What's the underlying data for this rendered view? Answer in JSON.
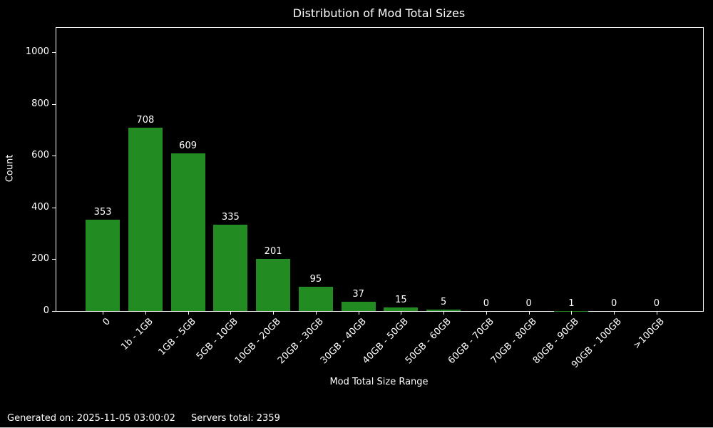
{
  "title": "Distribution of Mod Total Sizes",
  "footer": {
    "generated": "Generated on: 2025-11-05 03:00:02",
    "servers": "Servers total: 2359"
  },
  "chart_data": {
    "type": "bar",
    "title": "Distribution of Mod Total Sizes",
    "xlabel": "Mod Total Size Range",
    "ylabel": "Count",
    "categories": [
      "0",
      "1b - 1GB",
      "1GB - 5GB",
      "5GB - 10GB",
      "10GB - 20GB",
      "20GB - 30GB",
      "30GB - 40GB",
      "40GB - 50GB",
      "50GB - 60GB",
      "60GB - 70GB",
      "70GB - 80GB",
      "80GB - 90GB",
      "90GB - 100GB",
      ">100GB"
    ],
    "values": [
      353,
      708,
      609,
      335,
      201,
      95,
      37,
      15,
      5,
      0,
      0,
      1,
      0,
      0
    ],
    "ylim": [
      0,
      1095
    ],
    "yticks": [
      0,
      200,
      400,
      600,
      800,
      1000
    ],
    "xtick_rotation": 45,
    "bar_labels": true,
    "grid": false,
    "legend": null,
    "colors": {
      "bar": "#228B22",
      "background": "#000000",
      "text": "#ffffff",
      "spine": "#ffffff"
    }
  }
}
